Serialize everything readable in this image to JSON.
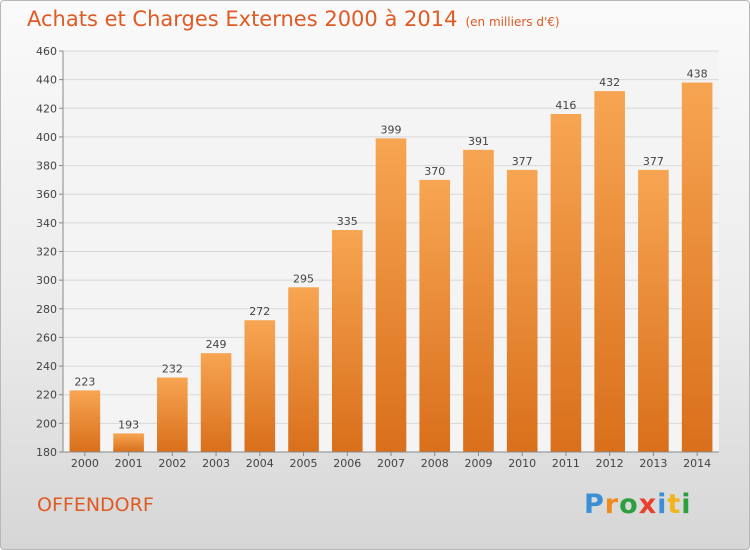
{
  "header": {
    "title": "Achats et Charges Externes 2000 à 2014",
    "subtitle": "(en milliers d'€)"
  },
  "footer": {
    "place": "OFFENDORF",
    "logo_letters": [
      "P",
      "r",
      "o",
      "x",
      "i",
      "t",
      "i"
    ],
    "logo_colors": [
      "#3a8fd6",
      "#f08a1c",
      "#2e9f3e",
      "#e8402d",
      "#3a8fd6",
      "#f0b41c",
      "#2e9f3e"
    ]
  },
  "colors": {
    "bar_top": "#f7a552",
    "bar_bottom": "#d96f1b",
    "text": "#e05a24",
    "grid": "#d8d8d8"
  },
  "chart_data": {
    "type": "bar",
    "categories": [
      "2000",
      "2001",
      "2002",
      "2003",
      "2004",
      "2005",
      "2006",
      "2007",
      "2008",
      "2009",
      "2010",
      "2011",
      "2012",
      "2013",
      "2014"
    ],
    "values": [
      223,
      193,
      232,
      249,
      272,
      295,
      335,
      399,
      370,
      391,
      377,
      416,
      432,
      377,
      438
    ],
    "ylim": [
      180,
      460
    ],
    "yticks": [
      180,
      200,
      220,
      240,
      260,
      280,
      300,
      320,
      340,
      360,
      380,
      400,
      420,
      440,
      460
    ],
    "grid": true,
    "data_labels": true
  }
}
